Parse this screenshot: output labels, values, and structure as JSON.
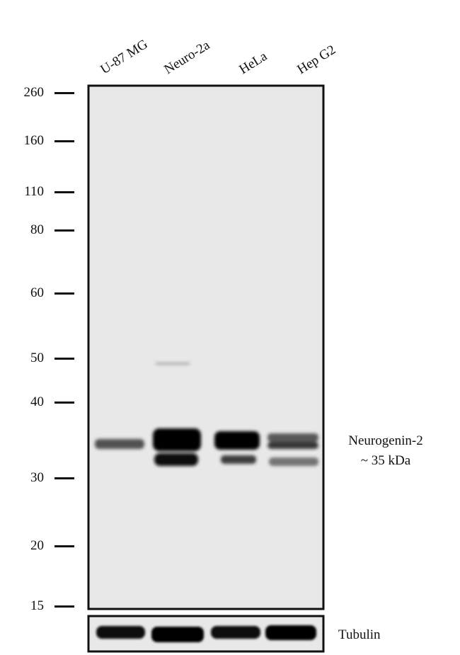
{
  "lanes": [
    "U-87 MG",
    "Neuro-2a",
    "HeLa",
    "Hep G2"
  ],
  "markers_kda": [
    "260",
    "160",
    "110",
    "80",
    "60",
    "50",
    "40",
    "30",
    "20",
    "15"
  ],
  "target": {
    "name": "Neurogenin-2",
    "size": "~ 35 kDa"
  },
  "loading_control": "Tubulin",
  "colors": {
    "background": "#e8e8e8",
    "band": "#050505",
    "frame": "#111111"
  }
}
